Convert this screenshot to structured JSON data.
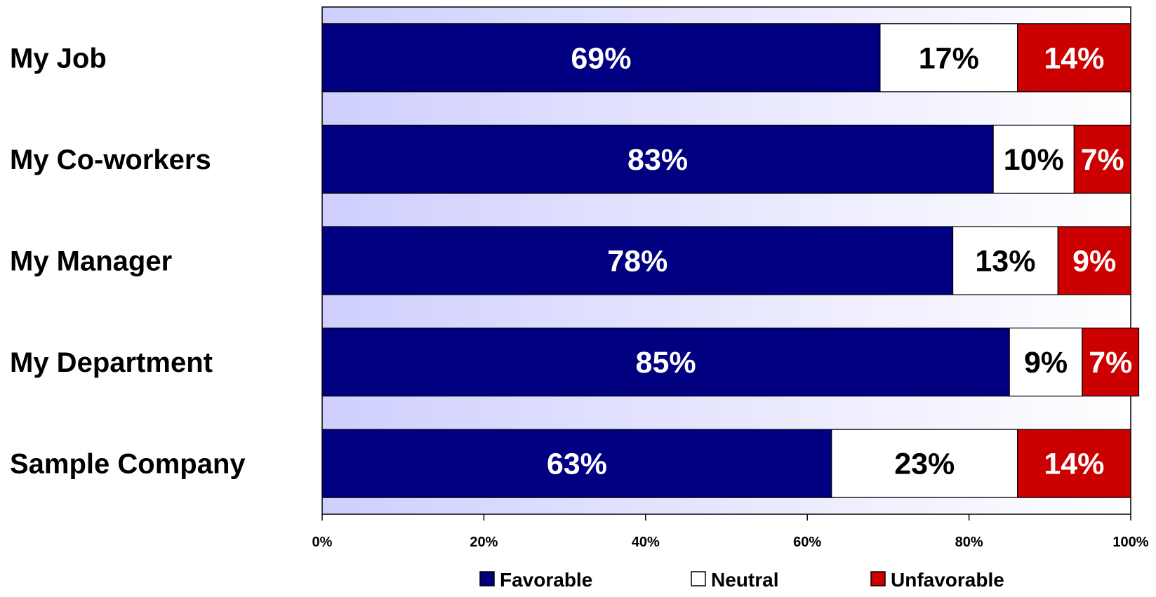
{
  "chart_data": {
    "type": "bar",
    "orientation": "horizontal",
    "stacked": "percent",
    "categories": [
      "My Job",
      "My Co-workers",
      "My Manager",
      "My Department",
      "Sample Company"
    ],
    "series": [
      {
        "name": "Favorable",
        "values": [
          69,
          83,
          78,
          85,
          63
        ],
        "color": "#000080",
        "label_color": "#ffffff"
      },
      {
        "name": "Neutral",
        "values": [
          17,
          10,
          13,
          9,
          23
        ],
        "color": "#ffffff",
        "label_color": "#000000"
      },
      {
        "name": "Unfavorable",
        "values": [
          14,
          7,
          9,
          7,
          14
        ],
        "color": "#cc0000",
        "label_color": "#ffffff"
      }
    ],
    "x_ticks": [
      "0%",
      "20%",
      "40%",
      "60%",
      "80%",
      "100%"
    ],
    "xlim": [
      0,
      100
    ],
    "legend": "bottom",
    "plot_background": [
      "#cfcfff",
      "#ffffff"
    ]
  }
}
